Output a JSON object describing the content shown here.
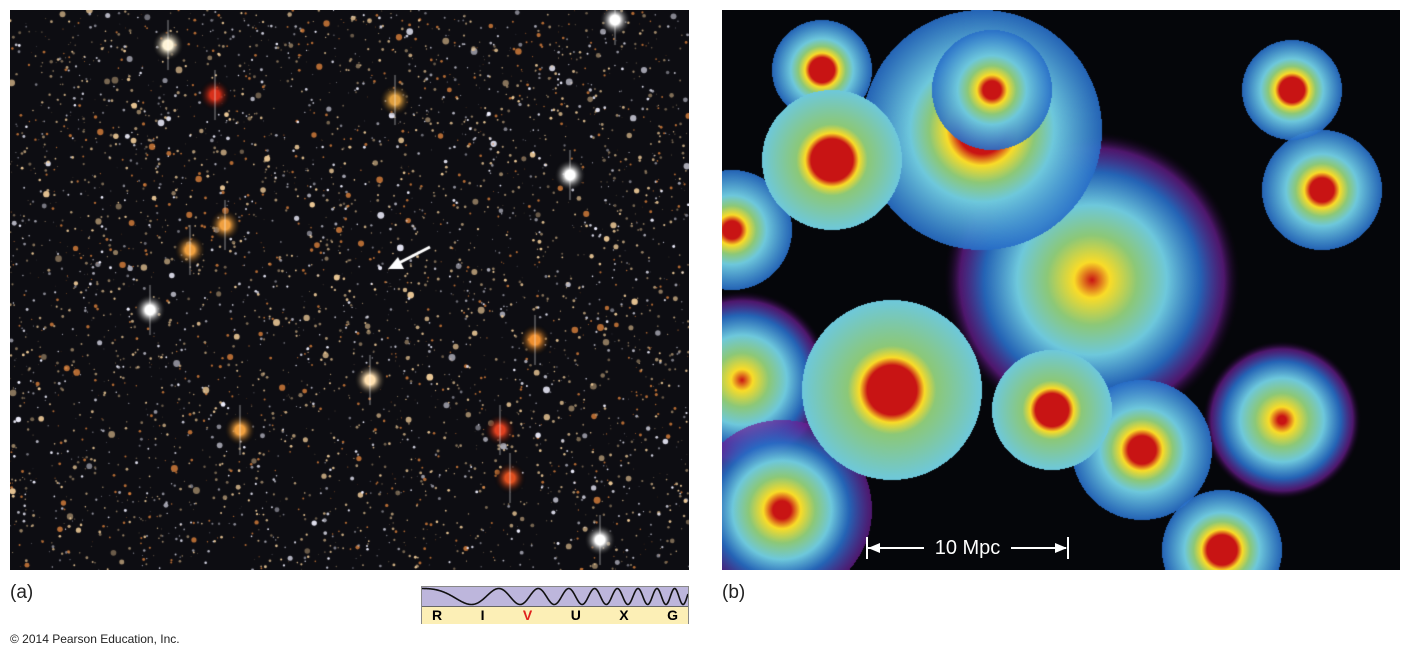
{
  "panel_a": {
    "label": "(a)",
    "spectrum": {
      "bands": [
        "R",
        "I",
        "V",
        "U",
        "X",
        "G"
      ],
      "highlighted": "V",
      "highlight_color": "#e0201c"
    }
  },
  "panel_b": {
    "label": "(b)",
    "scale_bar": "10 Mpc"
  },
  "copyright": "© 2014 Pearson Education, Inc."
}
